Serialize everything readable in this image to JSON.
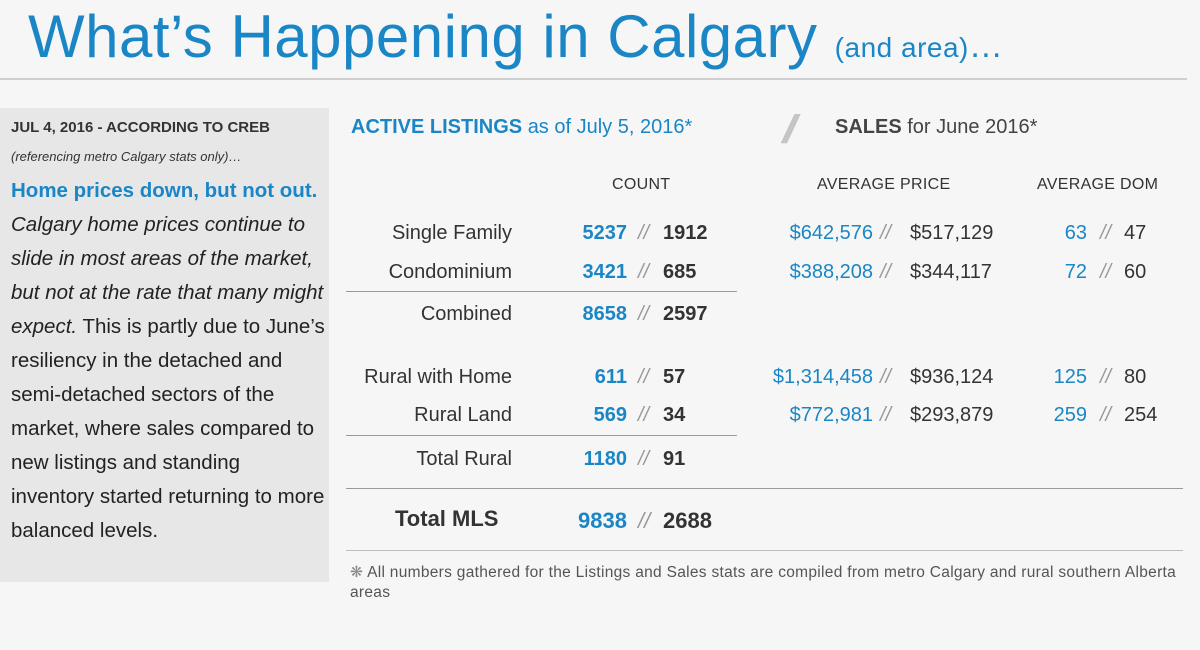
{
  "header": {
    "title": "What’s Happening in Calgary",
    "title_sub": "(and area)",
    "title_ellipsis": "…"
  },
  "sidebar": {
    "date": "JUL 4, 2016 - ACCORDING TO CREB",
    "reference": "(referencing metro Calgary stats only)…",
    "headline": "Home prices down, but not out.",
    "italic_text": "Calgary home prices continue to slide in most areas of the market, but not at the rate that many might expect.",
    "body_text": "This is partly due to June’s resiliency in the detached and semi-detached sectors of the market, where sales compared to new listings and standing inventory started returning to more balanced levels."
  },
  "table": {
    "active_label": "ACTIVE LISTINGS",
    "active_date": "as of July 5, 2016*",
    "separator": "//",
    "sales_label": "SALES",
    "sales_date": "for June 2016*",
    "col_count": "COUNT",
    "col_price": "AVERAGE PRICE",
    "col_dom": "AVERAGE DOM",
    "slash": "//",
    "rows": [
      {
        "label": "Single Family",
        "count_active": "5237",
        "count_sales": "1912",
        "price_active": "$642,576",
        "price_sales": "$517,129",
        "dom_active": "63",
        "dom_sales": "47"
      },
      {
        "label": "Condominium",
        "count_active": "3421",
        "count_sales": "685",
        "price_active": "$388,208",
        "price_sales": "$344,117",
        "dom_active": "72",
        "dom_sales": "60"
      },
      {
        "label": "Combined",
        "count_active": "8658",
        "count_sales": "2597"
      },
      {
        "label": "Rural with Home",
        "count_active": "611",
        "count_sales": "57",
        "price_active": "$1,314,458",
        "price_sales": "$936,124",
        "dom_active": "125",
        "dom_sales": "80"
      },
      {
        "label": "Rural Land",
        "count_active": "569",
        "count_sales": "34",
        "price_active": "$772,981",
        "price_sales": "$293,879",
        "dom_active": "259",
        "dom_sales": "254"
      },
      {
        "label": "Total Rural",
        "count_active": "1180",
        "count_sales": "91"
      }
    ],
    "total": {
      "label": "Total MLS",
      "count_active": "9838",
      "count_sales": "2688"
    }
  },
  "footnote": {
    "asterisk": "❋",
    "text": "All numbers gathered for the Listings and Sales stats are compiled from metro Calgary and rural southern Alberta areas"
  }
}
